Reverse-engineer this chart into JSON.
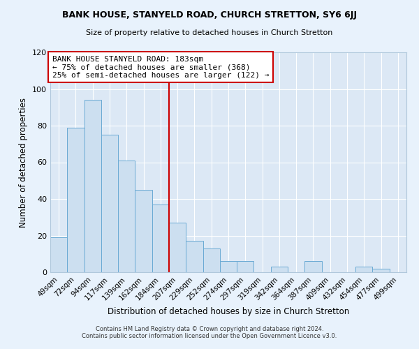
{
  "title": "BANK HOUSE, STANYELD ROAD, CHURCH STRETTON, SY6 6JJ",
  "subtitle": "Size of property relative to detached houses in Church Stretton",
  "xlabel": "Distribution of detached houses by size in Church Stretton",
  "ylabel": "Number of detached properties",
  "bin_labels": [
    "49sqm",
    "72sqm",
    "94sqm",
    "117sqm",
    "139sqm",
    "162sqm",
    "184sqm",
    "207sqm",
    "229sqm",
    "252sqm",
    "274sqm",
    "297sqm",
    "319sqm",
    "342sqm",
    "364sqm",
    "387sqm",
    "409sqm",
    "432sqm",
    "454sqm",
    "477sqm",
    "499sqm"
  ],
  "bar_values": [
    19,
    79,
    94,
    75,
    61,
    45,
    37,
    27,
    17,
    13,
    6,
    6,
    0,
    3,
    0,
    6,
    0,
    0,
    3,
    2,
    0
  ],
  "bar_color": "#ccdff0",
  "bar_edge_color": "#6aaad4",
  "background_color": "#dce8f5",
  "vline_color": "#cc0000",
  "vline_x": 6.5,
  "annotation_lines": [
    "BANK HOUSE STANYELD ROAD: 183sqm",
    "← 75% of detached houses are smaller (368)",
    "25% of semi-detached houses are larger (122) →"
  ],
  "annotation_box_color": "#ffffff",
  "annotation_box_edge": "#cc0000",
  "ylim": [
    0,
    120
  ],
  "yticks": [
    0,
    20,
    40,
    60,
    80,
    100,
    120
  ],
  "fig_bg": "#e8f2fc",
  "footer_line1": "Contains HM Land Registry data © Crown copyright and database right 2024.",
  "footer_line2": "Contains public sector information licensed under the Open Government Licence v3.0."
}
